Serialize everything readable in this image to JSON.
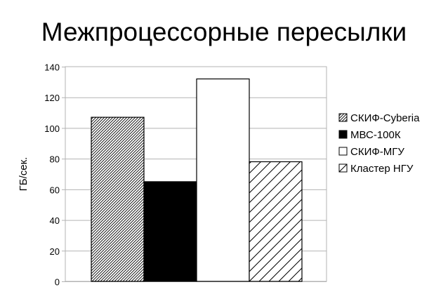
{
  "chart_data": {
    "type": "bar",
    "title": "Межпроцессорные пересылки",
    "ylabel": "ГБ/сек.",
    "xlabel": "",
    "ylim": [
      0,
      140
    ],
    "yticks": [
      0,
      20,
      40,
      60,
      80,
      100,
      120,
      140
    ],
    "grid": true,
    "legend_position": "right",
    "series": [
      {
        "name": "СКИФ-Cyberia",
        "values": [
          107
        ],
        "fill": "dense-diagonal-hatch"
      },
      {
        "name": "МВС-100К",
        "values": [
          65
        ],
        "fill": "#000000"
      },
      {
        "name": "СКИФ-МГУ",
        "values": [
          132
        ],
        "fill": "#ffffff"
      },
      {
        "name": "Кластер НГУ",
        "values": [
          78
        ],
        "fill": "sparse-diagonal-hatch"
      }
    ]
  }
}
